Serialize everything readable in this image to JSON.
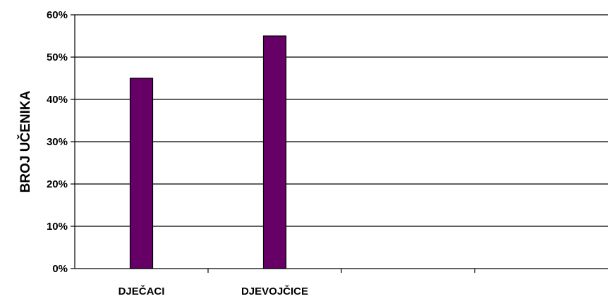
{
  "chart_data": {
    "type": "bar",
    "categories": [
      "DJEČACI",
      "DJEVOJČICE",
      "",
      ""
    ],
    "values": [
      45,
      55,
      null,
      null
    ],
    "y_tick_labels": [
      "0%",
      "10%",
      "20%",
      "30%",
      "40%",
      "50%",
      "60%"
    ],
    "ylabel": "BROJ UČENIKA",
    "xlabel": "",
    "ylim": [
      0,
      60
    ],
    "grid": true,
    "legend": "none",
    "bar_color": "#660066"
  }
}
